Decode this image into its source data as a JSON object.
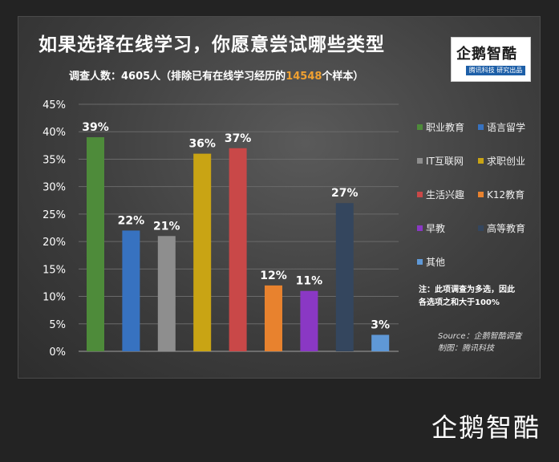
{
  "header": {
    "title": "如果选择在线学习，你愿意尝试哪些类型",
    "subtitle_pre": "调查人数：4605人（排除已有在线学习经历的",
    "subtitle_highlight": "14548",
    "subtitle_post": "个样本）"
  },
  "logo": {
    "main": "企鹅智酷",
    "sub": "腾讯科技 研究出品"
  },
  "brand": {
    "text": "企鹅智酷"
  },
  "note": "注：此项调查为多选，因此\n各选项之和大于100%",
  "source": {
    "line1": "Source：企鹅智酷调查",
    "line2": "制图：腾讯科技"
  },
  "colors": {
    "highlight": "#f0a030",
    "background": "#232323",
    "text": "#ffffff"
  },
  "chart_data": {
    "type": "bar",
    "categories": [
      "职业教育",
      "语言留学",
      "IT互联网",
      "求职创业",
      "生活兴趣",
      "K12教育",
      "早教",
      "高等教育",
      "其他"
    ],
    "values": [
      39,
      22,
      21,
      36,
      37,
      12,
      11,
      27,
      3
    ],
    "data_labels": [
      "39%",
      "22%",
      "21%",
      "36%",
      "37%",
      "12%",
      "11%",
      "27%",
      "3%"
    ],
    "colors": [
      "#4e8b3a",
      "#3772c0",
      "#8e8e8e",
      "#c9a414",
      "#c94848",
      "#e8822e",
      "#8a38c4",
      "#34465e",
      "#5f98d6"
    ],
    "ylim": [
      0,
      45
    ],
    "y_ticks": [
      "0%",
      "5%",
      "10%",
      "15%",
      "20%",
      "25%",
      "30%",
      "35%",
      "40%",
      "45%"
    ],
    "grid": true,
    "legend_position": "right"
  }
}
